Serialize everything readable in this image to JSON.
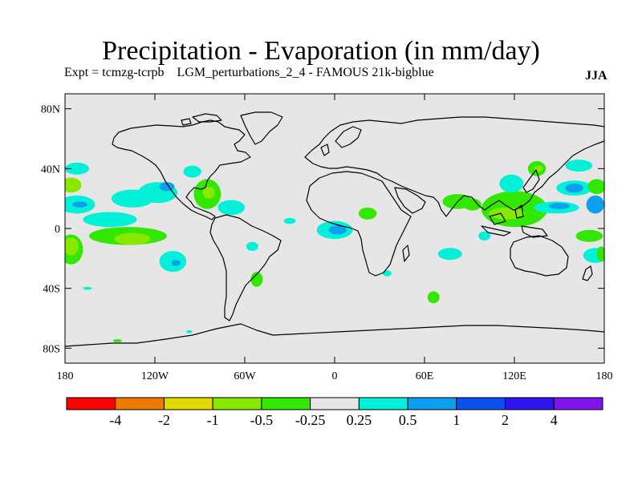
{
  "title": "Precipitation - Evaporation (in mm/day)",
  "subtitle": "Expt = tcmzg-tcrpb    LGM_perturbations_2_4 - FAMOUS 21k-bigblue",
  "season": "JJA",
  "map": {
    "projection": "cylindrical-equidistant",
    "lon_range": [
      -180,
      180
    ],
    "lat_range": [
      -90,
      90
    ],
    "background_color": "#e6e6e6",
    "lat_ticks": [
      {
        "value": 80,
        "label": "80N"
      },
      {
        "value": 40,
        "label": "40N"
      },
      {
        "value": 0,
        "label": "0"
      },
      {
        "value": -40,
        "label": "40S"
      },
      {
        "value": -80,
        "label": "80S"
      }
    ],
    "lon_ticks": [
      {
        "value": -180,
        "label": "180"
      },
      {
        "value": -120,
        "label": "120W"
      },
      {
        "value": -60,
        "label": "60W"
      },
      {
        "value": 0,
        "label": "0"
      },
      {
        "value": 60,
        "label": "60E"
      },
      {
        "value": 120,
        "label": "120E"
      },
      {
        "value": 180,
        "label": "180"
      }
    ]
  },
  "colorbar": {
    "colors": [
      "#ff0000",
      "#ee7a00",
      "#e4d800",
      "#88e800",
      "#32e800",
      "#e6e6e6",
      "#00f0d8",
      "#0ea0f0",
      "#0a50f0",
      "#2d14f0",
      "#8014f0"
    ],
    "labels": [
      "-4",
      "-2",
      "-1",
      "-0.5",
      "-0.25",
      "0.25",
      "0.5",
      "1",
      "2",
      "4"
    ]
  },
  "anomalies": [
    {
      "id": "n-pacific-east",
      "lon": -135,
      "lat": 20,
      "rx": 14,
      "ry": 6,
      "level": "0.5"
    },
    {
      "id": "n-pacific-mid",
      "lon": -118,
      "lat": 24,
      "rx": 13,
      "ry": 7,
      "level": "0.5"
    },
    {
      "id": "e-pacific-blue",
      "lon": -112,
      "lat": 28,
      "rx": 5,
      "ry": 3,
      "level": "1"
    },
    {
      "id": "w-pacific-north",
      "lon": -172,
      "lat": 40,
      "rx": 8,
      "ry": 4,
      "level": "0.5"
    },
    {
      "id": "dateline-green",
      "lon": -176,
      "lat": 29,
      "rx": 7,
      "ry": 5,
      "level": "-0.5"
    },
    {
      "id": "dateline-cyan",
      "lon": -172,
      "lat": 16,
      "rx": 12,
      "ry": 6,
      "level": "0.5"
    },
    {
      "id": "dateline-blue",
      "lon": -170,
      "lat": 16,
      "rx": 5,
      "ry": 2,
      "level": "1"
    },
    {
      "id": "pacific-cyan",
      "lon": -150,
      "lat": 6,
      "rx": 18,
      "ry": 5,
      "level": "0.5"
    },
    {
      "id": "sepac-green-band",
      "lon": -138,
      "lat": -5,
      "rx": 26,
      "ry": 6,
      "level": "-0.25"
    },
    {
      "id": "sepac-yellow-green",
      "lon": -135,
      "lat": -7,
      "rx": 12,
      "ry": 4,
      "level": "-0.5"
    },
    {
      "id": "spac-west-green",
      "lon": -176,
      "lat": -14,
      "rx": 8,
      "ry": 10,
      "level": "-0.25"
    },
    {
      "id": "spac-west-yellow",
      "lon": -176,
      "lat": -12,
      "rx": 5,
      "ry": 6,
      "level": "-0.5"
    },
    {
      "id": "spac-cyan-blob",
      "lon": -108,
      "lat": -22,
      "rx": 9,
      "ry": 7,
      "level": "0.5"
    },
    {
      "id": "spac-blue-blob",
      "lon": -106,
      "lat": -23,
      "rx": 3,
      "ry": 2,
      "level": "1"
    },
    {
      "id": "gulf-mexico-green",
      "lon": -85,
      "lat": 23,
      "rx": 9,
      "ry": 10,
      "level": "-0.25"
    },
    {
      "id": "caribbean-yellow-green",
      "lon": -84,
      "lat": 24,
      "rx": 4,
      "ry": 4,
      "level": "-0.5"
    },
    {
      "id": "us-east-cyan",
      "lon": -95,
      "lat": 38,
      "rx": 6,
      "ry": 4,
      "level": "0.5"
    },
    {
      "id": "atlantic-cyan",
      "lon": -69,
      "lat": 14,
      "rx": 9,
      "ry": 5,
      "level": "0.5"
    },
    {
      "id": "s-america-cyan",
      "lon": -55,
      "lat": -12,
      "rx": 4,
      "ry": 3,
      "level": "0.5"
    },
    {
      "id": "s-atlantic-green",
      "lon": -52,
      "lat": -34,
      "rx": 4,
      "ry": 5,
      "level": "-0.25"
    },
    {
      "id": "equatorial-atlantic-cyan",
      "lon": -30,
      "lat": 5,
      "rx": 4,
      "ry": 2,
      "level": "0.5"
    },
    {
      "id": "gulf-guinea-cyan",
      "lon": 0,
      "lat": -1,
      "rx": 12,
      "ry": 6,
      "level": "0.5"
    },
    {
      "id": "gulf-guinea-blue",
      "lon": 2,
      "lat": -1,
      "rx": 6,
      "ry": 3,
      "level": "1"
    },
    {
      "id": "e-africa-green",
      "lon": 22,
      "lat": 10,
      "rx": 6,
      "ry": 4,
      "level": "-0.25"
    },
    {
      "id": "s-indian-cyan",
      "lon": 77,
      "lat": -17,
      "rx": 8,
      "ry": 4,
      "level": "0.5"
    },
    {
      "id": "s-indian-green",
      "lon": 66,
      "lat": -46,
      "rx": 4,
      "ry": 4,
      "level": "-0.25"
    },
    {
      "id": "madagascar-cyan",
      "lon": 35,
      "lat": -30,
      "rx": 3,
      "ry": 2,
      "level": "0.5"
    },
    {
      "id": "india-green",
      "lon": 82,
      "lat": 18,
      "rx": 10,
      "ry": 5,
      "level": "-0.25"
    },
    {
      "id": "bay-bengal-green",
      "lon": 92,
      "lat": 16,
      "rx": 6,
      "ry": 4,
      "level": "-0.25"
    },
    {
      "id": "se-asia-green",
      "lon": 120,
      "lat": 13,
      "rx": 22,
      "ry": 12,
      "level": "-0.25"
    },
    {
      "id": "se-asia-yellow",
      "lon": 115,
      "lat": 10,
      "rx": 12,
      "ry": 4,
      "level": "-0.5"
    },
    {
      "id": "w-pacific-cyan",
      "lon": 148,
      "lat": 14,
      "rx": 15,
      "ry": 4,
      "level": "0.5"
    },
    {
      "id": "w-pacific-blue",
      "lon": 150,
      "lat": 15,
      "rx": 7,
      "ry": 2,
      "level": "1"
    },
    {
      "id": "china-cyan",
      "lon": 118,
      "lat": 30,
      "rx": 8,
      "ry": 6,
      "level": "0.5"
    },
    {
      "id": "japan-green",
      "lon": 135,
      "lat": 40,
      "rx": 6,
      "ry": 5,
      "level": "-0.25"
    },
    {
      "id": "japan-yellow",
      "lon": 136,
      "lat": 40,
      "rx": 3,
      "ry": 2,
      "level": "-0.5"
    },
    {
      "id": "n-pacific-cyan",
      "lon": 160,
      "lat": 27,
      "rx": 12,
      "ry": 5,
      "level": "0.5"
    },
    {
      "id": "n-pacific-blue",
      "lon": 160,
      "lat": 27,
      "rx": 6,
      "ry": 3,
      "level": "1"
    },
    {
      "id": "nw-pacific-cyan",
      "lon": 163,
      "lat": 42,
      "rx": 9,
      "ry": 4,
      "level": "0.5"
    },
    {
      "id": "e-end-blue",
      "lon": 174,
      "lat": 16,
      "rx": 6,
      "ry": 6,
      "level": "1"
    },
    {
      "id": "e-end-green-n",
      "lon": 175,
      "lat": 28,
      "rx": 6,
      "ry": 5,
      "level": "-0.25"
    },
    {
      "id": "e-end-green-s",
      "lon": 170,
      "lat": -5,
      "rx": 9,
      "ry": 4,
      "level": "-0.25"
    },
    {
      "id": "sw-pacific-cyan",
      "lon": 174,
      "lat": -18,
      "rx": 8,
      "ry": 5,
      "level": "0.5"
    },
    {
      "id": "sw-pacific-green",
      "lon": 178,
      "lat": -17,
      "rx": 3,
      "ry": 5,
      "level": "-0.25"
    },
    {
      "id": "indonesia-cyan",
      "lon": 100,
      "lat": -5,
      "rx": 4,
      "ry": 3,
      "level": "0.5"
    },
    {
      "id": "s-pacific-far-cyan",
      "lon": -165,
      "lat": -40,
      "rx": 3,
      "ry": 1,
      "level": "0.5"
    },
    {
      "id": "antarctic-cyan-a",
      "lon": -97,
      "lat": -69,
      "rx": 2,
      "ry": 1,
      "level": "0.5"
    },
    {
      "id": "antarctic-green-a",
      "lon": -145,
      "lat": -75,
      "rx": 3,
      "ry": 1,
      "level": "-0.25"
    }
  ]
}
